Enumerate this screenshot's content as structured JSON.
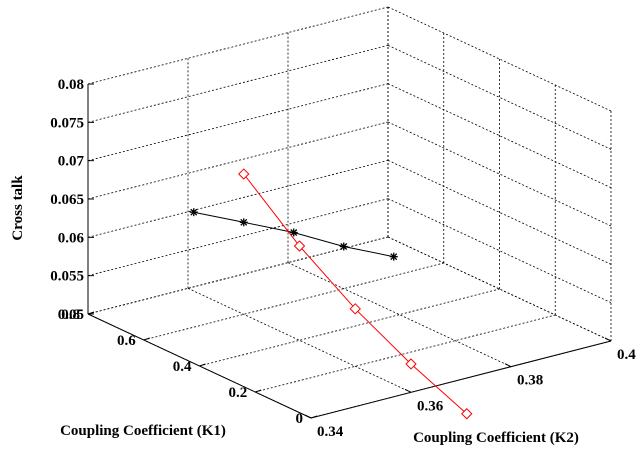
{
  "chart_data": {
    "type": "line3d",
    "title": "",
    "xlabel": "Coupling Coefficient (K1)",
    "ylabel": "Coupling Coefficient (K2)",
    "zlabel": "Cross talk",
    "xlim": [
      0,
      0.8
    ],
    "ylim": [
      0.34,
      0.4
    ],
    "zlim": [
      0.05,
      0.08
    ],
    "x_ticks": [
      "0",
      "0.2",
      "0.4",
      "0.6",
      "0.8"
    ],
    "y_ticks": [
      "0.34",
      "0.36",
      "0.38",
      "0.4"
    ],
    "z_ticks": [
      "0.05",
      "0.055",
      "0.06",
      "0.065",
      "0.07",
      "0.075",
      "0.08"
    ],
    "grid": true,
    "series": [
      {
        "marker": "asterisk",
        "color": "#000000",
        "points": [
          {
            "x": 0.6,
            "y": 0.35,
            "z": 0.065
          },
          {
            "x": 0.6,
            "y": 0.36,
            "z": 0.062
          },
          {
            "x": 0.6,
            "y": 0.37,
            "z": 0.059
          },
          {
            "x": 0.6,
            "y": 0.38,
            "z": 0.0555
          },
          {
            "x": 0.6,
            "y": 0.39,
            "z": 0.0525
          }
        ]
      },
      {
        "marker": "diamond",
        "color": "#ff0000",
        "points": [
          {
            "x": 0.6,
            "y": 0.36,
            "z": 0.0683
          },
          {
            "x": 0.4,
            "y": 0.36,
            "z": 0.0623
          },
          {
            "x": 0.2,
            "y": 0.36,
            "z": 0.0575
          },
          {
            "x": 0.0,
            "y": 0.36,
            "z": 0.0537
          },
          {
            "x": -0.2,
            "y": 0.36,
            "z": 0.0506
          }
        ]
      }
    ]
  }
}
